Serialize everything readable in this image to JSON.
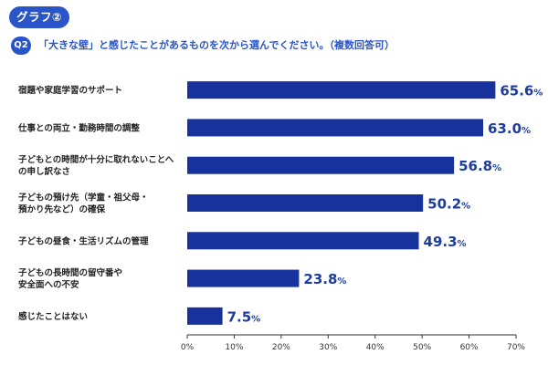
{
  "header": {
    "tag_label": "グラフ②",
    "question_badge": "Q2",
    "question_text": "「大きな壁」と感じたことがあるものを次から選んでください。（複数回答可）"
  },
  "colors": {
    "accent": "#2a55c8",
    "bar": "#17329c",
    "value_text": "#1e3c9e",
    "axis": "#333333"
  },
  "chart_data": {
    "type": "bar",
    "orientation": "horizontal",
    "categories": [
      [
        "宿題や家庭学習のサポート"
      ],
      [
        "仕事との両立・勤務時間の調整"
      ],
      [
        "子どもとの時間が十分に取れないことへ",
        "の申し訳なさ"
      ],
      [
        "子どもの預け先（学童・祖父母・",
        "預かり先など）の確保"
      ],
      [
        "子どもの昼食・生活リズムの管理"
      ],
      [
        "子どもの長時間の留守番や",
        "安全面への不安"
      ],
      [
        "感じたことはない"
      ]
    ],
    "values": [
      65.6,
      63.0,
      56.8,
      50.2,
      49.3,
      23.8,
      7.5
    ],
    "value_labels": [
      "65.6",
      "63.0",
      "56.8",
      "50.2",
      "49.3",
      "23.8",
      "7.5"
    ],
    "value_unit": "%",
    "xlim": [
      0,
      70
    ],
    "ticks": [
      "0%",
      "10%",
      "20%",
      "30%",
      "40%",
      "50%",
      "60%",
      "70%"
    ],
    "grid": false
  }
}
